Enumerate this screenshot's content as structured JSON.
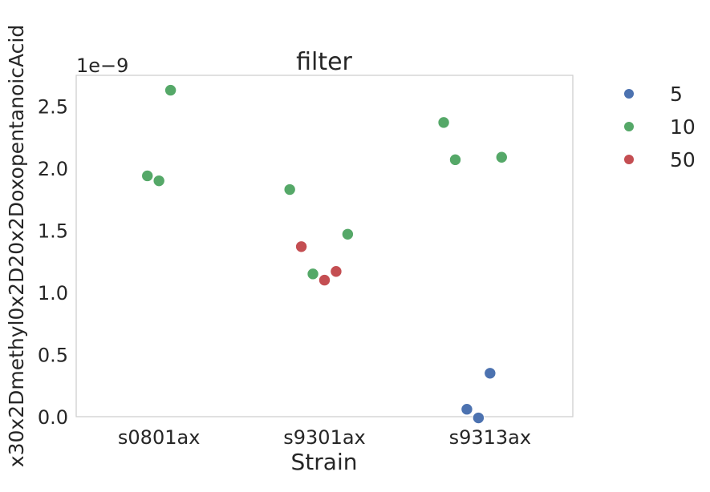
{
  "chart_data": {
    "type": "scatter",
    "title": "filter",
    "xlabel": "Strain",
    "ylabel": "x30x2Dmethyl0x2D20x2DoxopentanoicAcid",
    "y_offset_text": "1e−9",
    "categories": [
      "s0801ax",
      "s9301ax",
      "s9313ax"
    ],
    "ylim": [
      0.0,
      2.75
    ],
    "yticks": [
      0.0,
      0.5,
      1.0,
      1.5,
      2.0,
      2.5
    ],
    "ytick_labels": [
      "0.0",
      "0.5",
      "1.0",
      "1.5",
      "2.0",
      "2.5"
    ],
    "grid": false,
    "legend_position": "outside-right",
    "series": [
      {
        "name": "5",
        "color": "#4c72b0",
        "points": [
          {
            "category": "s9313ax",
            "jitter": -0.14,
            "y": 0.06
          },
          {
            "category": "s9313ax",
            "jitter": -0.07,
            "y": -0.01
          },
          {
            "category": "s9313ax",
            "jitter": 0.0,
            "y": 0.35
          }
        ]
      },
      {
        "name": "10",
        "color": "#55a868",
        "points": [
          {
            "category": "s0801ax",
            "jitter": -0.07,
            "y": 1.94
          },
          {
            "category": "s0801ax",
            "jitter": 0.0,
            "y": 1.9
          },
          {
            "category": "s0801ax",
            "jitter": 0.07,
            "y": 2.63
          },
          {
            "category": "s9301ax",
            "jitter": -0.21,
            "y": 1.83
          },
          {
            "category": "s9301ax",
            "jitter": -0.07,
            "y": 1.15
          },
          {
            "category": "s9301ax",
            "jitter": 0.14,
            "y": 1.47
          },
          {
            "category": "s9313ax",
            "jitter": -0.28,
            "y": 2.37
          },
          {
            "category": "s9313ax",
            "jitter": -0.21,
            "y": 2.07
          },
          {
            "category": "s9313ax",
            "jitter": 0.07,
            "y": 2.09
          }
        ]
      },
      {
        "name": "50",
        "color": "#c44e52",
        "points": [
          {
            "category": "s9301ax",
            "jitter": -0.14,
            "y": 1.37
          },
          {
            "category": "s9301ax",
            "jitter": 0.0,
            "y": 1.1
          },
          {
            "category": "s9301ax",
            "jitter": 0.07,
            "y": 1.17
          }
        ]
      }
    ]
  }
}
